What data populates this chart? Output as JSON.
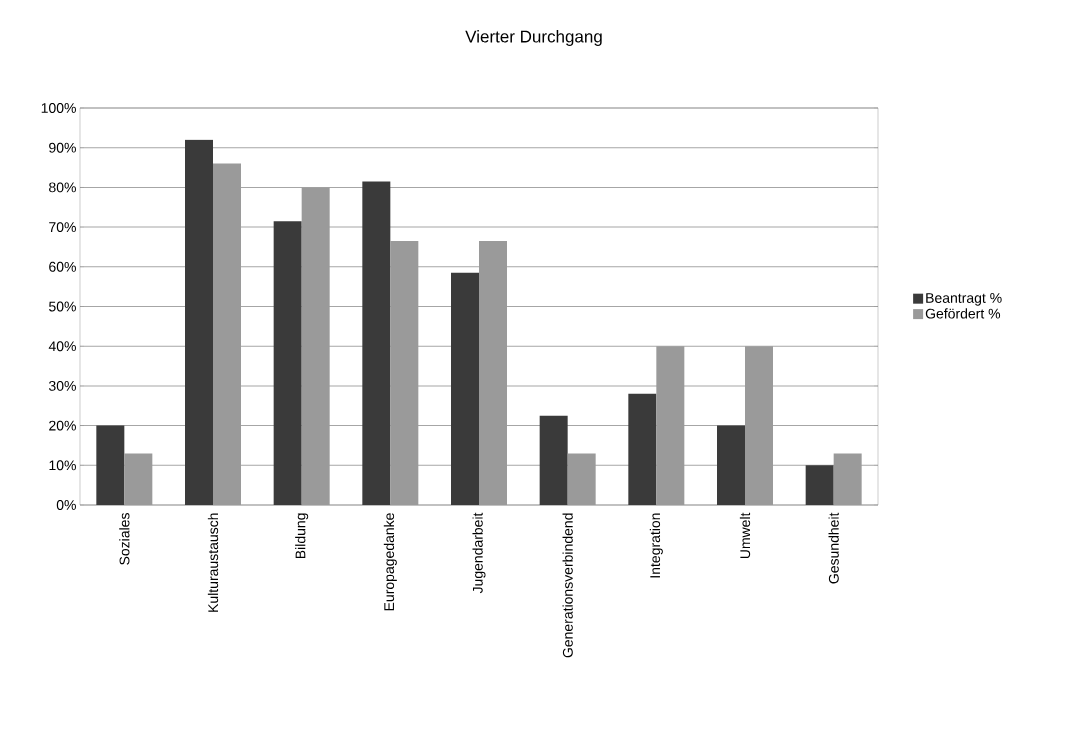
{
  "chart_data": {
    "type": "bar",
    "title": "Vierter Durchgang",
    "categories": [
      "Soziales",
      "Kulturaustausch",
      "Bildung",
      "Europagedanke",
      "Jugendarbeit",
      "Generationsverbindend",
      "Integration",
      "Umwelt",
      "Gesundheit"
    ],
    "series": [
      {
        "name": "Beantragt %",
        "color": "#3a3a3a",
        "values": [
          20,
          92,
          71.5,
          81.5,
          58.5,
          22.5,
          28,
          20,
          10
        ]
      },
      {
        "name": "Gefördert %",
        "color": "#9a9a9a",
        "values": [
          13,
          86,
          80,
          66.5,
          66.5,
          13,
          40,
          40,
          13
        ]
      }
    ],
    "ylim": [
      0,
      100
    ],
    "yticks": [
      {
        "value": 0,
        "label": "0%"
      },
      {
        "value": 10,
        "label": "10%"
      },
      {
        "value": 20,
        "label": "20%"
      },
      {
        "value": 30,
        "label": "30%"
      },
      {
        "value": 40,
        "label": "40%"
      },
      {
        "value": 50,
        "label": "50%"
      },
      {
        "value": 60,
        "label": "60%"
      },
      {
        "value": 70,
        "label": "70%"
      },
      {
        "value": 80,
        "label": "80%"
      },
      {
        "value": 90,
        "label": "90%"
      },
      {
        "value": 100,
        "label": "100%"
      }
    ],
    "grid": "y",
    "legend": "right"
  }
}
